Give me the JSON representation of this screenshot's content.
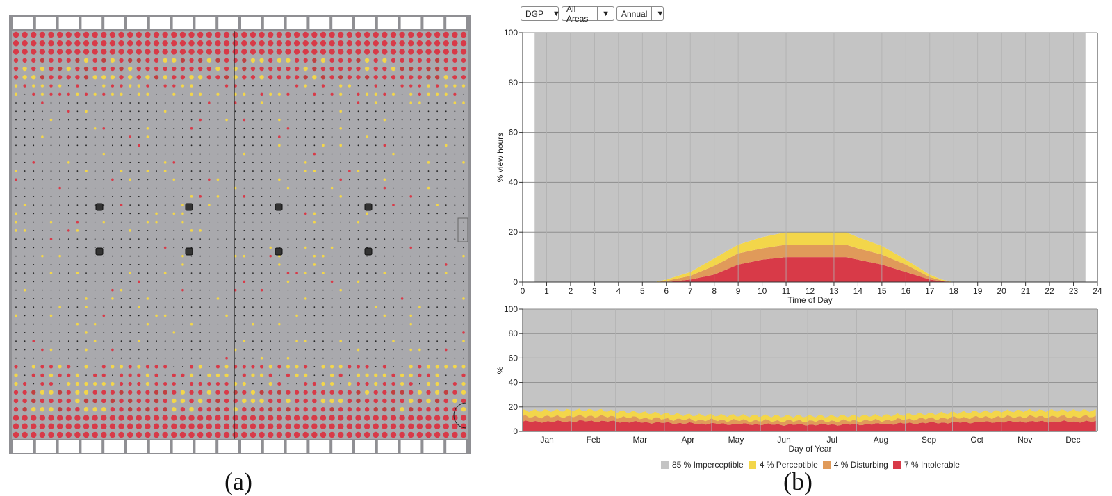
{
  "panel_labels": {
    "a": "(a)",
    "b": "(b)"
  },
  "controls": {
    "metric": "DGP",
    "area": "All Areas",
    "period": "Annual",
    "arrow": "▼"
  },
  "colors": {
    "imperceptible": "#c4c4c4",
    "perceptible": "#f3d64a",
    "disturbing": "#e09a5a",
    "intolerable": "#d83a48",
    "grid": "#9a9a9a",
    "floor_bg": "#a9a9ad"
  },
  "legend": [
    {
      "key": "imperceptible",
      "label": "85 % Imperceptible"
    },
    {
      "key": "perceptible",
      "label": "4 % Perceptible"
    },
    {
      "key": "disturbing",
      "label": "4 % Disturbing"
    },
    {
      "key": "intolerable",
      "label": "7 % Intolerable"
    }
  ],
  "chart_data": [
    {
      "type": "area",
      "stacked": true,
      "xlabel": "Time of Day",
      "ylabel": "% view hours",
      "xlim": [
        0,
        24
      ],
      "ylim": [
        0,
        100
      ],
      "xticks": [
        0,
        1,
        2,
        3,
        4,
        5,
        6,
        7,
        8,
        9,
        10,
        11,
        12,
        13,
        14,
        15,
        16,
        17,
        18,
        19,
        20,
        21,
        22,
        23,
        24
      ],
      "yticks": [
        0,
        20,
        40,
        60,
        80,
        100
      ],
      "grid": true,
      "x": [
        0.5,
        5.5,
        6,
        7,
        8,
        9,
        10,
        11,
        12,
        13,
        13.5,
        14,
        15,
        16,
        17,
        17.5,
        18,
        23.5
      ],
      "series": [
        {
          "name": "Intolerable",
          "key": "intolerable",
          "values": [
            0,
            0,
            0,
            1,
            3,
            7,
            9,
            10,
            10,
            10,
            10,
            9,
            7,
            4,
            1,
            0.3,
            0,
            0
          ]
        },
        {
          "name": "Disturbing",
          "key": "disturbing",
          "values": [
            0,
            0,
            0.5,
            1.5,
            3.5,
            4.5,
            4.5,
            5,
            5,
            5,
            5,
            4.5,
            4,
            3,
            1,
            0.3,
            0,
            0
          ]
        },
        {
          "name": "Perceptible",
          "key": "perceptible",
          "values": [
            0,
            0,
            0.5,
            1.5,
            3,
            3.5,
            4.5,
            5,
            5,
            5,
            5,
            4.5,
            3.5,
            2,
            1,
            0.4,
            0,
            0
          ]
        },
        {
          "name": "Imperceptible",
          "key": "imperceptible",
          "values": [
            100,
            100,
            99,
            96,
            90.5,
            85,
            82,
            80,
            80,
            80,
            80,
            82,
            85.5,
            91,
            97,
            99,
            100,
            100
          ]
        }
      ]
    },
    {
      "type": "area",
      "stacked": true,
      "xlabel": "Day of Year",
      "ylabel": "%",
      "ylim": [
        0,
        100
      ],
      "yticks": [
        0,
        20,
        40,
        60,
        80,
        100
      ],
      "grid": true,
      "months": [
        "Jan",
        "Feb",
        "Mar",
        "Apr",
        "May",
        "Jun",
        "Jul",
        "Aug",
        "Sep",
        "Oct",
        "Nov",
        "Dec"
      ],
      "month_days": [
        31,
        28,
        31,
        30,
        31,
        30,
        31,
        31,
        30,
        31,
        30,
        31
      ],
      "series_by_month": [
        {
          "name": "Intolerable",
          "key": "intolerable",
          "values": [
            8,
            8.5,
            7.5,
            6.5,
            6,
            5.5,
            5.5,
            6,
            7,
            7.5,
            8,
            8
          ]
        },
        {
          "name": "Disturbing",
          "key": "disturbing",
          "values": [
            4,
            4,
            3.5,
            3,
            3,
            3,
            3,
            3,
            3.5,
            4,
            4,
            4
          ]
        },
        {
          "name": "Perceptible",
          "key": "perceptible",
          "values": [
            5,
            5,
            4.5,
            4,
            4,
            4,
            4,
            4,
            4,
            4.5,
            5,
            5
          ]
        }
      ]
    }
  ]
}
